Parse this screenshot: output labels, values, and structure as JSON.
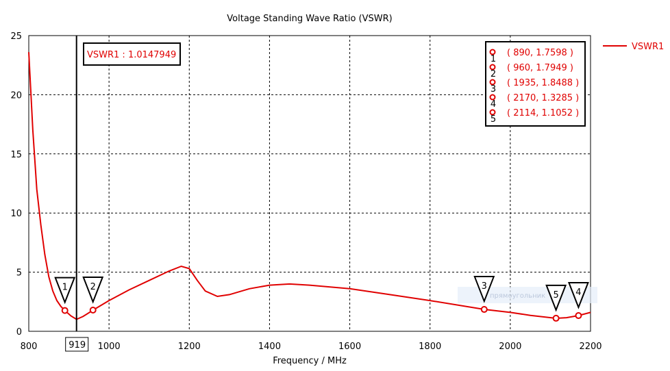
{
  "chart_data": {
    "type": "line",
    "title": "Voltage Standing Wave Ratio (VSWR)",
    "xlabel": "Frequency / MHz",
    "ylabel": "",
    "xlim": [
      800,
      2200
    ],
    "ylim": [
      0,
      25
    ],
    "xticks": [
      800,
      1000,
      1200,
      1400,
      1600,
      1800,
      2000,
      2200
    ],
    "yticks": [
      0,
      5,
      10,
      15,
      20,
      25
    ],
    "grid": true,
    "legend_position": "right",
    "series": [
      {
        "name": "VSWR1",
        "color": "#e00000",
        "x": [
          800,
          810,
          820,
          830,
          840,
          850,
          860,
          870,
          880,
          890,
          905,
          919,
          935,
          960,
          1000,
          1050,
          1100,
          1150,
          1180,
          1200,
          1220,
          1240,
          1270,
          1300,
          1350,
          1400,
          1450,
          1500,
          1600,
          1700,
          1800,
          1935,
          2000,
          2050,
          2114,
          2140,
          2170,
          2200
        ],
        "y": [
          23.6,
          17,
          12,
          9,
          6.5,
          4.6,
          3.4,
          2.6,
          2.1,
          1.76,
          1.3,
          1.01,
          1.25,
          1.79,
          2.6,
          3.5,
          4.3,
          5.1,
          5.5,
          5.3,
          4.3,
          3.4,
          2.95,
          3.1,
          3.6,
          3.9,
          4.0,
          3.9,
          3.6,
          3.1,
          2.6,
          1.85,
          1.6,
          1.35,
          1.1,
          1.15,
          1.33,
          1.6
        ]
      }
    ],
    "markers": [
      {
        "id": "1",
        "x": 890,
        "y": 1.7598,
        "text": "( 890, 1.7598 )"
      },
      {
        "id": "2",
        "x": 960,
        "y": 1.7949,
        "text": "( 960, 1.7949 )"
      },
      {
        "id": "3",
        "x": 1935,
        "y": 1.8488,
        "text": "( 1935, 1.8488 )"
      },
      {
        "id": "4",
        "x": 2170,
        "y": 1.3285,
        "text": "( 2170, 1.3285 )"
      },
      {
        "id": "5",
        "x": 2114,
        "y": 1.1052,
        "text": "( 2114, 1.1052 )"
      }
    ],
    "cursor": {
      "x": 919,
      "x_label": "919",
      "readout": "VSWR1 : 1.0147949"
    },
    "overlay_text": "прямоугольник"
  }
}
